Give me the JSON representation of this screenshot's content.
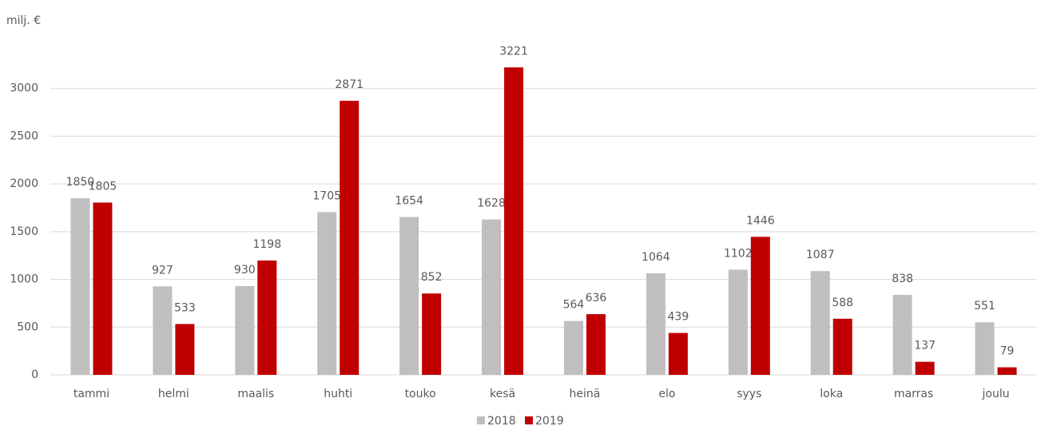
{
  "chart_data": {
    "type": "bar",
    "y_label": "milj. €",
    "categories": [
      "tammi",
      "helmi",
      "maalis",
      "huhti",
      "touko",
      "kesä",
      "heinä",
      "elo",
      "syys",
      "loka",
      "marras",
      "joulu"
    ],
    "series": [
      {
        "name": "2018",
        "color": "#bfbfbf",
        "values": [
          1850,
          927,
          930,
          1705,
          1654,
          1628,
          564,
          1064,
          1102,
          1087,
          838,
          551
        ]
      },
      {
        "name": "2019",
        "color": "#c00000",
        "values": [
          1805,
          533,
          1198,
          2871,
          852,
          3221,
          636,
          439,
          1446,
          588,
          137,
          79
        ]
      }
    ],
    "ylim": [
      0,
      3500
    ],
    "yticks": [
      0,
      500,
      1000,
      1500,
      2000,
      2500,
      3000
    ],
    "grid": true,
    "legend": "bottom"
  }
}
